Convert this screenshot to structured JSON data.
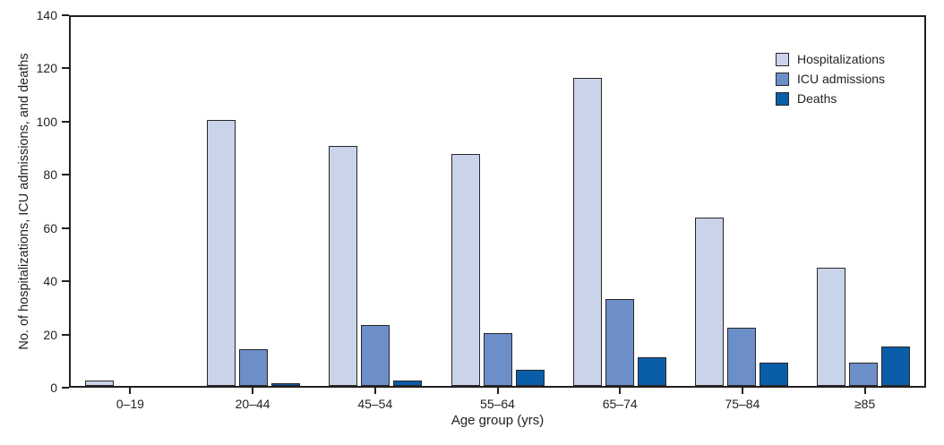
{
  "chart_data": {
    "type": "bar",
    "title": "",
    "categories": [
      "0–19",
      "20–44",
      "45–54",
      "55–64",
      "65–74",
      "75–84",
      "≥85"
    ],
    "series": [
      {
        "name": "Hospitalizations",
        "color": "#c9d3e9",
        "values": [
          2,
          101,
          91,
          88,
          117,
          64,
          45
        ]
      },
      {
        "name": "ICU admissions",
        "color": "#6d8fc9",
        "values": [
          0,
          14,
          23,
          20,
          33,
          22,
          9
        ]
      },
      {
        "name": "Deaths",
        "color": "#0a5ea9",
        "values": [
          0,
          1,
          2,
          6,
          11,
          9,
          15
        ]
      }
    ],
    "xlabel": "Age group (yrs)",
    "ylabel": "No. of hospitalizations, ICU admissions, and deaths",
    "ylim": [
      0,
      140
    ],
    "yticks": [
      0,
      20,
      40,
      60,
      80,
      100,
      120,
      140
    ],
    "grid": false,
    "legend_position": "top-right",
    "plot_frame": true,
    "axis_color": "#231f20",
    "bar_border_color": "#2a2627",
    "background_color": "#ffffff"
  }
}
